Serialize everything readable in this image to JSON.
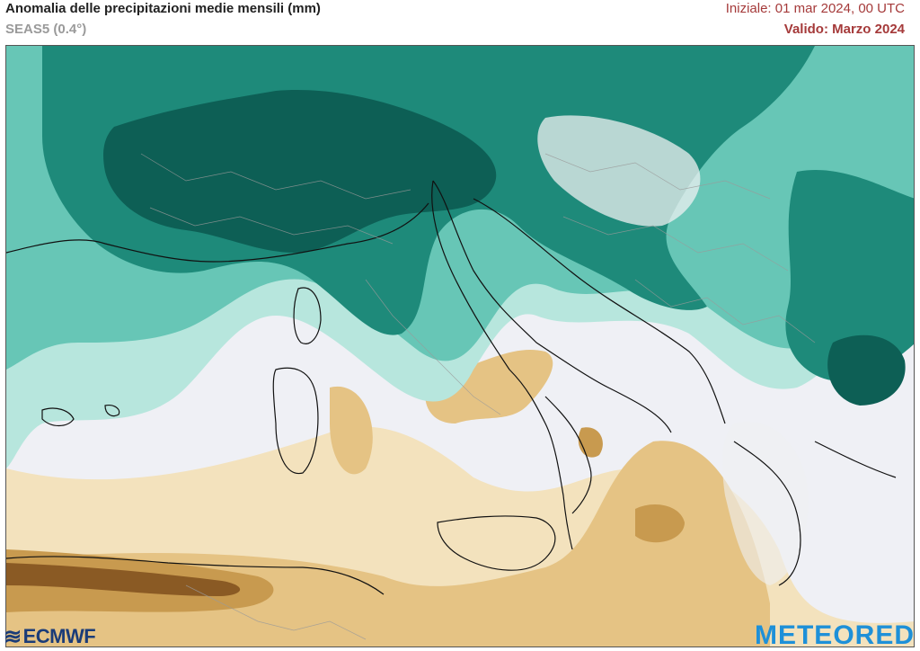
{
  "header": {
    "title": "Anomalia delle precipitazioni medie mensili (mm)",
    "subtitle": "SEAS5 (0.4°)",
    "initial": "Iniziale: 01 mar 2024, 00 UTC",
    "valid_label": "Valido:",
    "valid_value": "Marzo 2024"
  },
  "logos": {
    "left": "ECMWF",
    "right": "METEORED"
  },
  "colors": {
    "wet_strong": "#0d5f55",
    "wet_medium": "#1e8a7a",
    "wet_light": "#67c6b6",
    "wet_pale": "#b7e6dd",
    "neutral": "#eff0f5",
    "dry_pale": "#f3e2bd",
    "dry_light": "#e5c384",
    "dry_medium": "#c89a4f",
    "dry_strong": "#8a5a24",
    "land_relief": "#eef0f2"
  }
}
